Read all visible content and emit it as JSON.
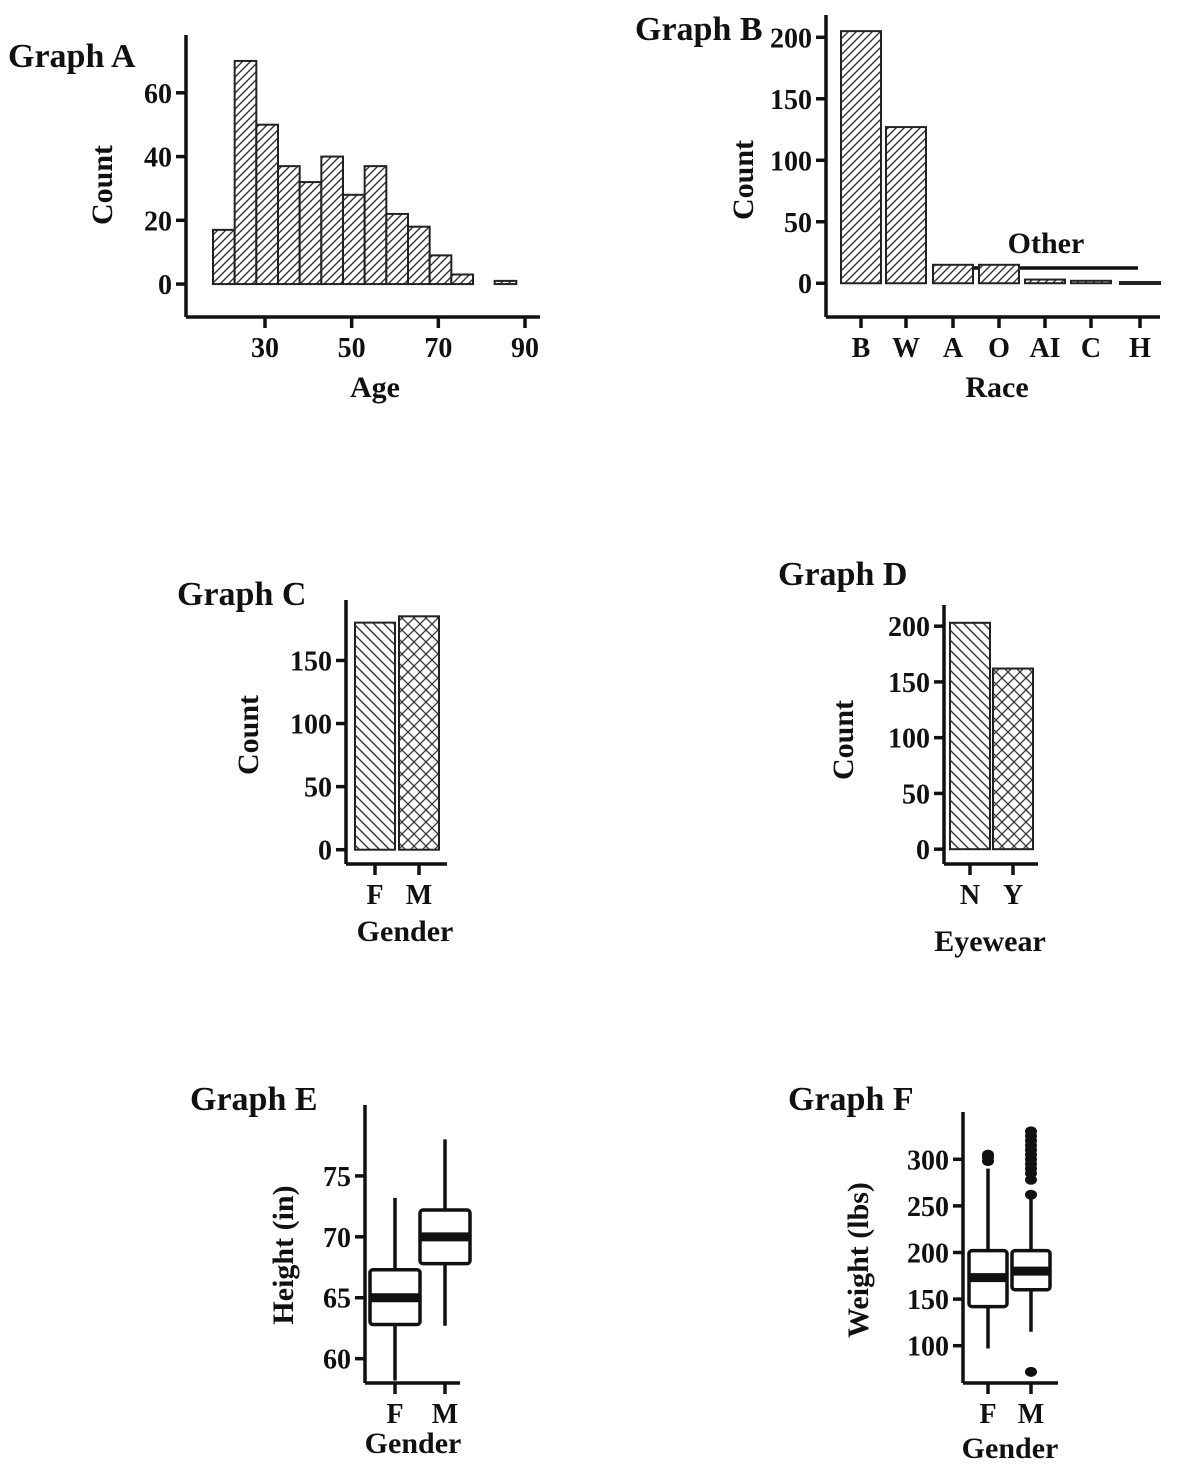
{
  "chart_data": [
    {
      "id": "A",
      "type": "bar",
      "title": "Graph A",
      "xlabel": "Age",
      "ylabel": "Count",
      "xticks": [
        30,
        50,
        70,
        90
      ],
      "yticks": [
        0,
        20,
        40,
        60
      ],
      "xlim": [
        15,
        90
      ],
      "ylim": [
        -5,
        75
      ],
      "bin_width": 5,
      "bins": [
        {
          "x0": 18,
          "value": 17
        },
        {
          "x0": 23,
          "value": 70
        },
        {
          "x0": 28,
          "value": 50
        },
        {
          "x0": 33,
          "value": 37
        },
        {
          "x0": 38,
          "value": 32
        },
        {
          "x0": 43,
          "value": 40
        },
        {
          "x0": 48,
          "value": 28
        },
        {
          "x0": 53,
          "value": 37
        },
        {
          "x0": 58,
          "value": 22
        },
        {
          "x0": 63,
          "value": 18
        },
        {
          "x0": 68,
          "value": 9
        },
        {
          "x0": 73,
          "value": 3
        },
        {
          "x0": 83,
          "value": 1
        }
      ],
      "fill_pattern": "hatch-diagonal"
    },
    {
      "id": "B",
      "type": "bar",
      "title": "Graph B",
      "xlabel": "Race",
      "ylabel": "Count",
      "categories": [
        "B",
        "W",
        "A",
        "O",
        "AI",
        "C",
        "H"
      ],
      "values": [
        205,
        127,
        15,
        15,
        3,
        2,
        1
      ],
      "yticks": [
        0,
        50,
        100,
        150,
        200
      ],
      "ylim": [
        -12,
        210
      ],
      "group_annotation": {
        "label": "Other",
        "from": "A",
        "to": "H"
      },
      "fill_pattern": "hatch-diagonal"
    },
    {
      "id": "C",
      "type": "bar",
      "title": "Graph C",
      "xlabel": "Gender",
      "ylabel": "Count",
      "categories": [
        "F",
        "M"
      ],
      "values": [
        180,
        185
      ],
      "yticks": [
        0,
        50,
        100,
        150
      ],
      "ylim": [
        -5,
        190
      ],
      "fill_patterns": [
        "hatch-back-diagonal",
        "hatch-cross"
      ]
    },
    {
      "id": "D",
      "type": "bar",
      "title": "Graph D",
      "xlabel": "Eyewear",
      "ylabel": "Count",
      "categories": [
        "N",
        "Y"
      ],
      "values": [
        203,
        162
      ],
      "yticks": [
        0,
        50,
        100,
        150,
        200
      ],
      "ylim": [
        -7,
        210
      ],
      "fill_patterns": [
        "hatch-back-diagonal",
        "hatch-cross"
      ]
    },
    {
      "id": "E",
      "type": "box",
      "title": "Graph E",
      "xlabel": "Gender",
      "ylabel": "Height (in)",
      "categories": [
        "F",
        "M"
      ],
      "yticks": [
        60,
        65,
        70,
        75
      ],
      "ylim": [
        58,
        80
      ],
      "boxes": [
        {
          "min": 58.2,
          "q1": 62.8,
          "median": 65,
          "q3": 67.3,
          "max": 73.2,
          "outliers": []
        },
        {
          "min": 62.7,
          "q1": 67.8,
          "median": 70,
          "q3": 72.2,
          "max": 78,
          "outliers": []
        }
      ]
    },
    {
      "id": "F",
      "type": "box",
      "title": "Graph F",
      "xlabel": "Gender",
      "ylabel": "Weight (lbs)",
      "categories": [
        "F",
        "M"
      ],
      "yticks": [
        100,
        150,
        200,
        250,
        300
      ],
      "ylim": [
        60,
        340
      ],
      "boxes": [
        {
          "min": 97,
          "q1": 142,
          "median": 173,
          "q3": 202,
          "max": 290,
          "outliers": [
            298,
            302,
            305
          ]
        },
        {
          "min": 115,
          "q1": 160,
          "median": 180,
          "q3": 202,
          "max": 260,
          "outliers": [
            72,
            262,
            278,
            285,
            290,
            295,
            300,
            305,
            310,
            315,
            320,
            325,
            330
          ]
        }
      ]
    }
  ]
}
